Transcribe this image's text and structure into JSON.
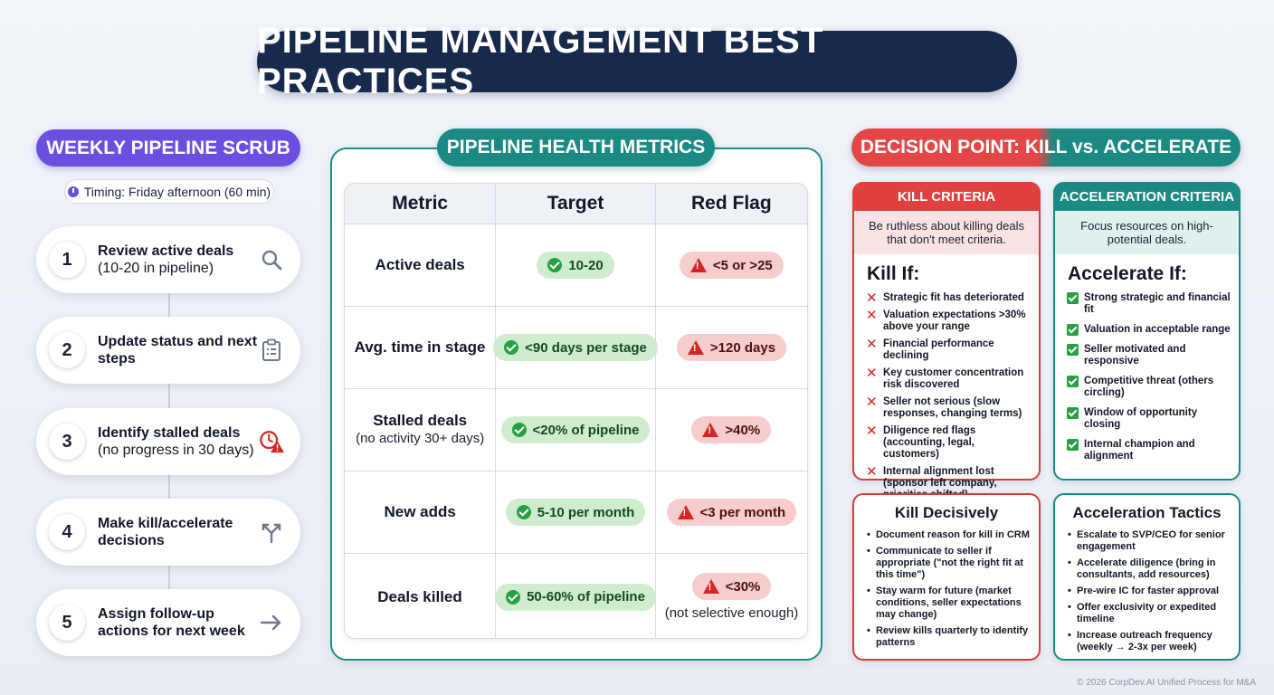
{
  "title": "PIPELINE MANAGEMENT BEST PRACTICES",
  "weekly_scrub": {
    "heading": "WEEKLY PIPELINE SCRUB",
    "timing": "Timing: Friday afternoon (60 min)",
    "steps": [
      {
        "num": "1",
        "label": "Review active deals",
        "sub": "(10-20 in pipeline)",
        "icon": "search-icon"
      },
      {
        "num": "2",
        "label": "Update status and next steps",
        "sub": "",
        "icon": "clipboard-icon"
      },
      {
        "num": "3",
        "label": "Identify stalled deals",
        "sub": "(no progress in 30 days)",
        "icon": "clock-alert-icon"
      },
      {
        "num": "4",
        "label": "Make kill/accelerate decisions",
        "sub": "",
        "icon": "fork-arrow-icon"
      },
      {
        "num": "5",
        "label": "Assign follow-up actions for next week",
        "sub": "",
        "icon": "arrow-right-icon"
      }
    ]
  },
  "metrics": {
    "heading": "PIPELINE HEALTH METRICS",
    "columns": [
      "Metric",
      "Target",
      "Red Flag"
    ],
    "rows": [
      {
        "metric": "Active deals",
        "metric_sub": "",
        "target": "10-20",
        "red_flag": "<5 or >25",
        "red_note": ""
      },
      {
        "metric": "Avg. time in stage",
        "metric_sub": "",
        "target": "<90 days per stage",
        "red_flag": ">120 days",
        "red_note": ""
      },
      {
        "metric": "Stalled deals",
        "metric_sub": "(no activity 30+ days)",
        "target": "<20% of pipeline",
        "red_flag": ">40%",
        "red_note": ""
      },
      {
        "metric": "New adds",
        "metric_sub": "",
        "target": "5-10 per month",
        "red_flag": "<3 per month",
        "red_note": ""
      },
      {
        "metric": "Deals killed",
        "metric_sub": "",
        "target": "50-60% of pipeline",
        "red_flag": "<30%",
        "red_note": "(not selective enough)"
      }
    ]
  },
  "decision": {
    "heading": "DECISION POINT: KILL vs. ACCELERATE",
    "kill": {
      "header": "KILL CRITERIA",
      "desc": "Be ruthless about killing deals that don't meet criteria.",
      "subhead": "Kill If:",
      "items": [
        "Strategic fit has deteriorated",
        "Valuation expectations >30% above your range",
        "Financial performance declining",
        "Key customer concentration risk discovered",
        "Seller not serious (slow responses, changing terms)",
        "Diligence red flags (accounting, legal, customers)",
        "Internal alignment lost (sponsor left company, priorities shifted)"
      ]
    },
    "accelerate": {
      "header": "ACCELERATION CRITERIA",
      "desc": "Focus resources on high-potential deals.",
      "subhead": "Accelerate If:",
      "items": [
        "Strong strategic and financial fit",
        "Valuation in acceptable range",
        "Seller motivated and responsive",
        "Competitive threat (others circling)",
        "Window of opportunity closing",
        "Internal champion and alignment"
      ]
    },
    "kill_decisively": {
      "title": "Kill Decisively",
      "items": [
        "Document reason for kill in CRM",
        "Communicate to seller if appropriate (\"not the right fit at this time\")",
        "Stay warm for future (market conditions, seller expectations may change)",
        "Review kills quarterly to identify patterns"
      ]
    },
    "tactics": {
      "title": "Acceleration Tactics",
      "items": [
        "Escalate to SVP/CEO for senior engagement",
        "Accelerate diligence (bring in consultants, add resources)",
        "Pre-wire IC for faster approval",
        "Offer exclusivity or expedited timeline",
        "Increase outreach frequency (weekly → 2-3x per week)"
      ]
    }
  },
  "footer": "© 2026 CorpDev.AI Unified Process for M&A",
  "colors": {
    "navy": "#172a4b",
    "purple": "#6a4fe0",
    "teal": "#1b8a82",
    "red": "#e04040",
    "green": "#26a043"
  }
}
